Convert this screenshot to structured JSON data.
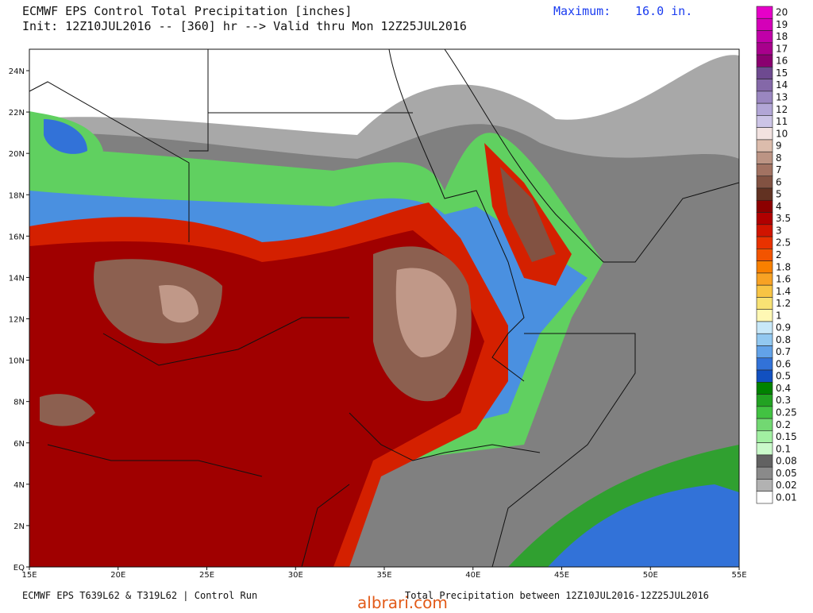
{
  "header": {
    "title": "ECMWF EPS Control Total Precipitation [inches]",
    "init": "Init: 12Z10JUL2016 -- [360] hr --> Valid thru Mon 12Z25JUL2016",
    "maximum_label": "Maximum:",
    "maximum_value": "16.0 in."
  },
  "colorbar": {
    "levels": [
      {
        "label": "20",
        "color": "#e600c8"
      },
      {
        "label": "19",
        "color": "#d400b8"
      },
      {
        "label": "18",
        "color": "#c000a8"
      },
      {
        "label": "17",
        "color": "#a8008c"
      },
      {
        "label": "16",
        "color": "#8a0070"
      },
      {
        "label": "15",
        "color": "#6e4a90"
      },
      {
        "label": "14",
        "color": "#8468a8"
      },
      {
        "label": "13",
        "color": "#9a86c0"
      },
      {
        "label": "12",
        "color": "#b2a6d6"
      },
      {
        "label": "11",
        "color": "#ccc4e6"
      },
      {
        "label": "10",
        "color": "#f2e2e0"
      },
      {
        "label": "9",
        "color": "#dcbcac"
      },
      {
        "label": "8",
        "color": "#bc9484"
      },
      {
        "label": "7",
        "color": "#a27262"
      },
      {
        "label": "6",
        "color": "#825242"
      },
      {
        "label": "5",
        "color": "#623222"
      },
      {
        "label": "4",
        "color": "#8c0000"
      },
      {
        "label": "3.5",
        "color": "#b00000"
      },
      {
        "label": "3",
        "color": "#d01400"
      },
      {
        "label": "2.5",
        "color": "#e83200"
      },
      {
        "label": "2",
        "color": "#f25400"
      },
      {
        "label": "1.8",
        "color": "#f88000"
      },
      {
        "label": "1.6",
        "color": "#f8a224"
      },
      {
        "label": "1.4",
        "color": "#f8c444"
      },
      {
        "label": "1.2",
        "color": "#f8e274"
      },
      {
        "label": "1",
        "color": "#fff8b4"
      },
      {
        "label": "0.9",
        "color": "#c8e8f8"
      },
      {
        "label": "0.8",
        "color": "#92c8f0"
      },
      {
        "label": "0.7",
        "color": "#62a2e8"
      },
      {
        "label": "0.6",
        "color": "#3272d8"
      },
      {
        "label": "0.5",
        "color": "#1250c0"
      },
      {
        "label": "0.4",
        "color": "#008200"
      },
      {
        "label": "0.3",
        "color": "#22a222"
      },
      {
        "label": "0.25",
        "color": "#42c242"
      },
      {
        "label": "0.2",
        "color": "#72d872"
      },
      {
        "label": "0.15",
        "color": "#a2f0a2"
      },
      {
        "label": "0.1",
        "color": "#cafaca"
      },
      {
        "label": "0.08",
        "color": "#626262"
      },
      {
        "label": "0.05",
        "color": "#8a8a8a"
      },
      {
        "label": "0.02",
        "color": "#b2b2b2"
      },
      {
        "label": "0.01",
        "color": "#ffffff"
      }
    ]
  },
  "axes": {
    "lat_labels": [
      "24N",
      "22N",
      "20N",
      "18N",
      "16N",
      "14N",
      "12N",
      "10N",
      "8N",
      "6N",
      "4N",
      "2N",
      "EQ"
    ],
    "lon_labels": [
      "15E",
      "20E",
      "25E",
      "30E",
      "35E",
      "40E",
      "45E",
      "50E",
      "55E"
    ]
  },
  "footer": {
    "left": "ECMWF EPS T639L62 & T319L62 | Control Run",
    "right": "Total Precipitation between 12Z10JUL2016-12Z25JUL2016",
    "watermark": "albrari.com"
  }
}
